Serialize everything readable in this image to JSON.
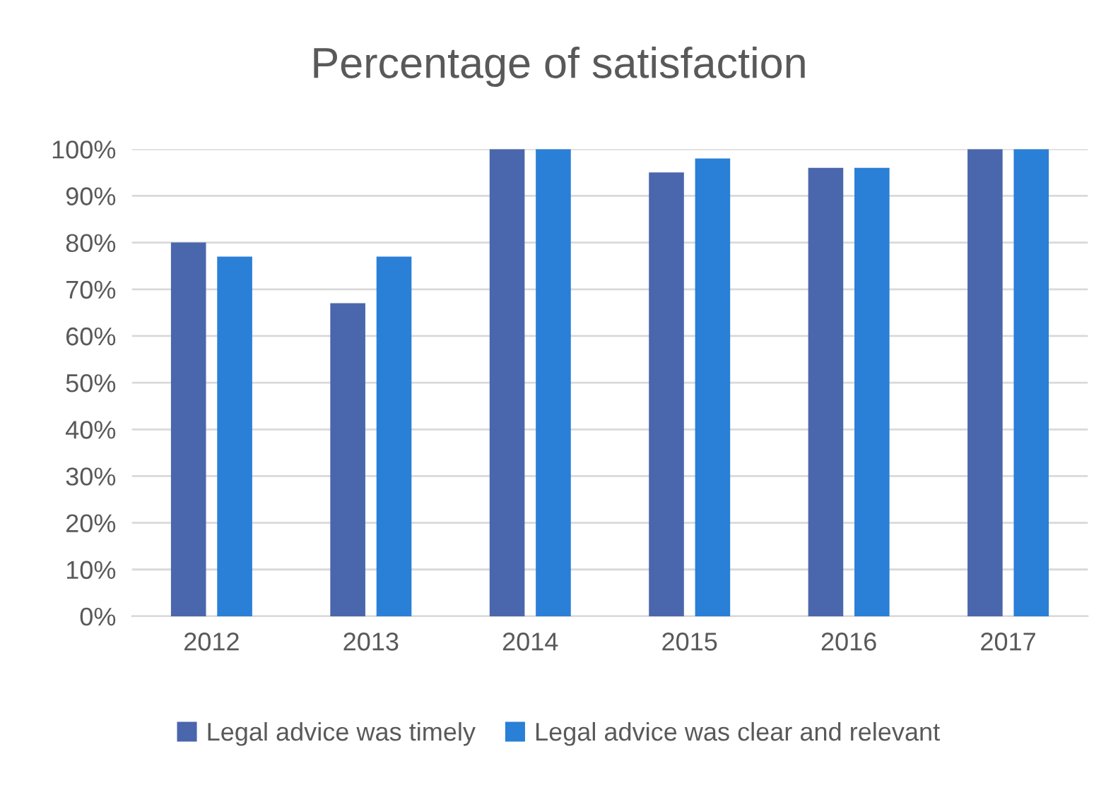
{
  "chart_data": {
    "type": "bar",
    "title": "Percentage of satisfaction",
    "categories": [
      "2012",
      "2013",
      "2014",
      "2015",
      "2016",
      "2017"
    ],
    "series": [
      {
        "name": "Legal advice was timely",
        "color": "#4a66ac",
        "values": [
          80,
          67,
          100,
          95,
          96,
          100
        ]
      },
      {
        "name": "Legal advice was clear and relevant",
        "color": "#2a7fd6",
        "values": [
          77,
          77,
          100,
          98,
          96,
          100
        ]
      }
    ],
    "ylim": [
      0,
      100
    ],
    "yticks": [
      {
        "value": 0,
        "label": "0%"
      },
      {
        "value": 10,
        "label": "10%"
      },
      {
        "value": 20,
        "label": "20%"
      },
      {
        "value": 30,
        "label": "30%"
      },
      {
        "value": 40,
        "label": "40%"
      },
      {
        "value": 50,
        "label": "50%"
      },
      {
        "value": 60,
        "label": "60%"
      },
      {
        "value": 70,
        "label": "70%"
      },
      {
        "value": 80,
        "label": "80%"
      },
      {
        "value": 90,
        "label": "90%"
      },
      {
        "value": 100,
        "label": "100%"
      }
    ],
    "grid": "y",
    "legend": "bottom"
  }
}
